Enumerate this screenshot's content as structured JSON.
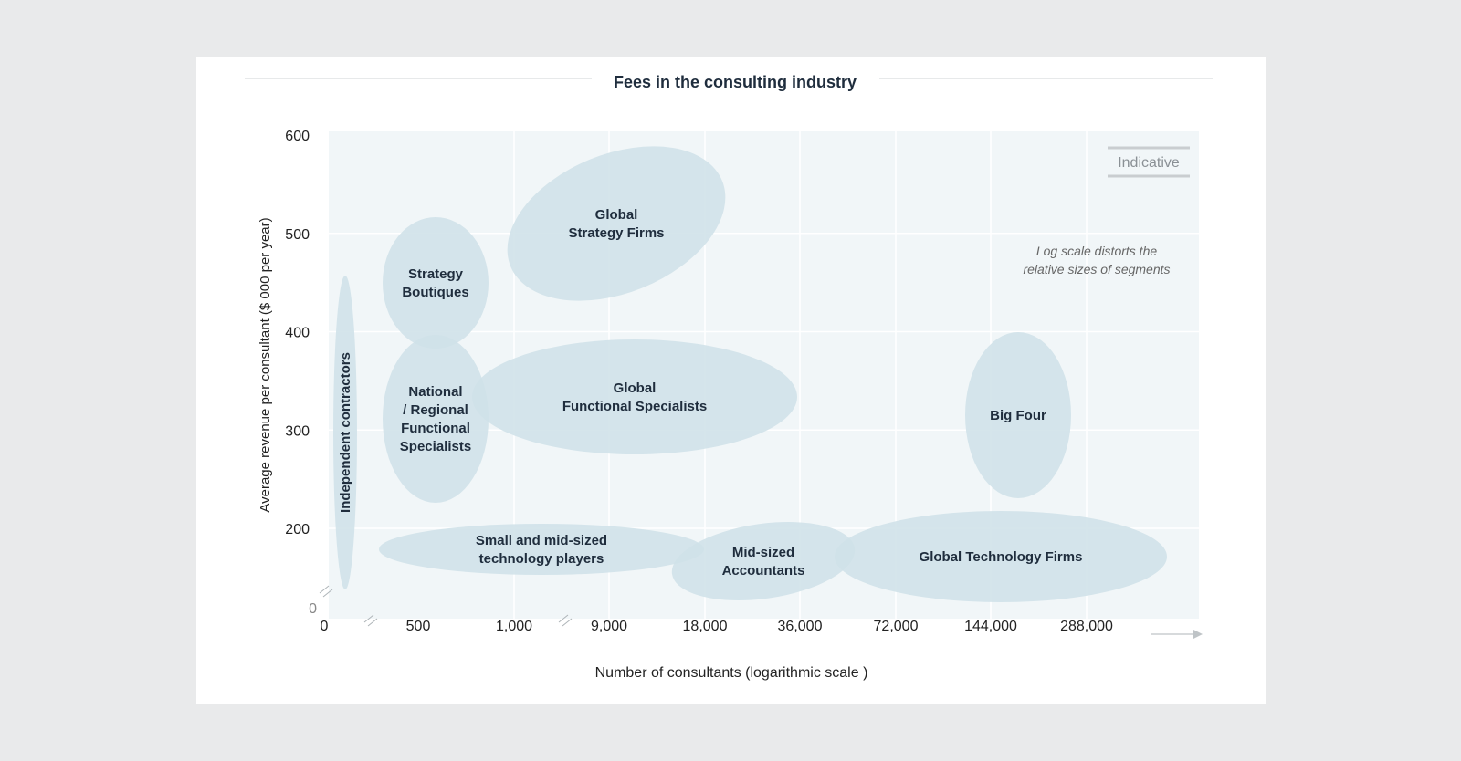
{
  "chart_data": {
    "type": "bubble",
    "title": "Fees in the consulting industry",
    "xlabel": "Number of consultants (logarithmic scale )",
    "ylabel": "Average revenue per consultant ($ 000 per year)",
    "x_scale": "log (broken axis)",
    "x_ticks": [
      "0",
      "500",
      "1,000",
      "9,000",
      "18,000",
      "36,000",
      "72,000",
      "144,000",
      "288,000"
    ],
    "y_ticks": [
      0,
      200,
      300,
      400,
      500,
      600
    ],
    "ylim": [
      0,
      600
    ],
    "grid": true,
    "badge": "Indicative",
    "note_lines": [
      "Log scale distorts the",
      "relative sizes of segments"
    ],
    "colors": {
      "segment_fill": "#cfe1e8",
      "plot_background": "#f1f6f8",
      "grid": "#ffffff",
      "label": "#1f2d3d",
      "axis_text": "#222222",
      "note": "#666666"
    },
    "segments": [
      {
        "label_lines": [
          "Global",
          "Strategy Firms"
        ],
        "x_range": [
          "1,000",
          "18,000"
        ],
        "y_range": [
          460,
          570
        ]
      },
      {
        "label_lines": [
          "Strategy",
          "Boutiques"
        ],
        "x_range": [
          "0",
          "1,000"
        ],
        "y_range": [
          390,
          510
        ]
      },
      {
        "label_lines": [
          "National",
          "/ Regional",
          "Functional",
          "Specialists"
        ],
        "x_range": [
          "0",
          "1,000"
        ],
        "y_range": [
          250,
          410
        ]
      },
      {
        "label_lines": [
          "Global",
          "Functional Specialists"
        ],
        "x_range": [
          "1,000",
          "36,000"
        ],
        "y_range": [
          260,
          380
        ]
      },
      {
        "label_lines": [
          "Independent contractors"
        ],
        "x_range": [
          "0",
          "0"
        ],
        "y_range": [
          140,
          450
        ]
      },
      {
        "label_lines": [
          "Small and mid-sized",
          "technology players"
        ],
        "x_range": [
          "0",
          "18,000"
        ],
        "y_range": [
          170,
          220
        ]
      },
      {
        "label_lines": [
          "Mid-sized",
          "Accountants"
        ],
        "x_range": [
          "18,000",
          "72,000"
        ],
        "y_range": [
          140,
          220
        ]
      },
      {
        "label_lines": [
          "Big Four"
        ],
        "x_range": [
          "144,000",
          "288,000"
        ],
        "y_range": [
          240,
          400
        ]
      },
      {
        "label_lines": [
          "Global Technology Firms"
        ],
        "x_range": [
          "72,000",
          "288,000"
        ],
        "y_range": [
          150,
          240
        ]
      }
    ]
  }
}
